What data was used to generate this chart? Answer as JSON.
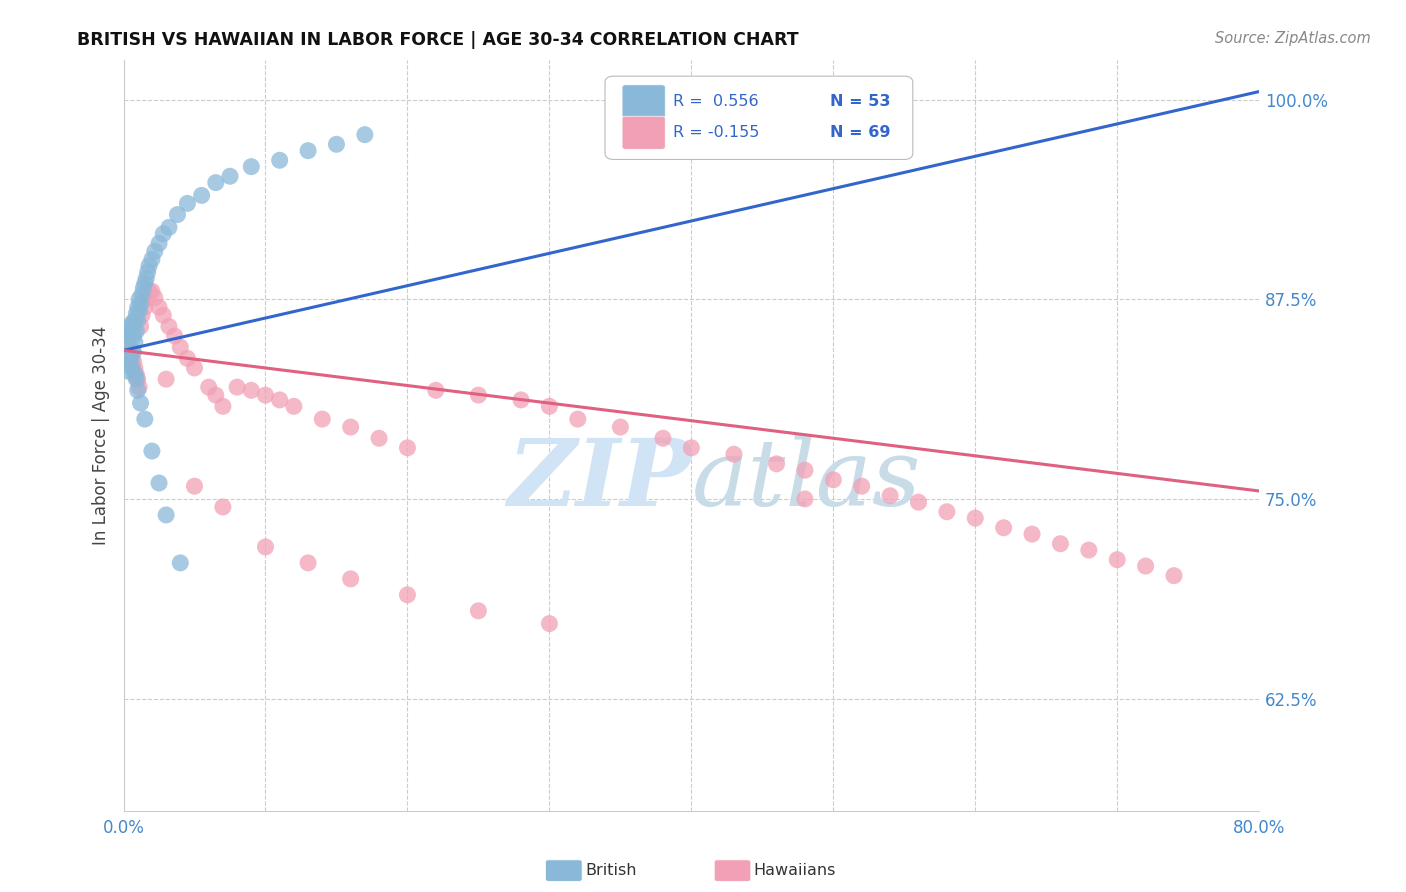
{
  "title": "BRITISH VS HAWAIIAN IN LABOR FORCE | AGE 30-34 CORRELATION CHART",
  "source_text": "Source: ZipAtlas.com",
  "ylabel": "In Labor Force | Age 30-34",
  "xlim": [
    0.0,
    0.8
  ],
  "ylim": [
    0.555,
    1.025
  ],
  "ytick_positions": [
    0.625,
    0.75,
    0.875,
    1.0
  ],
  "ytick_labels": [
    "62.5%",
    "75.0%",
    "87.5%",
    "100.0%"
  ],
  "british_color": "#8ab8d8",
  "hawaiian_color": "#f2a0b5",
  "british_line_color": "#3366cc",
  "hawaiian_line_color": "#e06080",
  "legend_R_british": "R =  0.556",
  "legend_N_british": "N = 53",
  "legend_R_hawaiian": "R = -0.155",
  "legend_N_hawaiian": "N = 69",
  "watermark_color": "#d0e4f5",
  "british_x": [
    0.002,
    0.003,
    0.004,
    0.005,
    0.005,
    0.006,
    0.006,
    0.007,
    0.007,
    0.008,
    0.008,
    0.009,
    0.009,
    0.01,
    0.01,
    0.011,
    0.011,
    0.012,
    0.013,
    0.014,
    0.015,
    0.016,
    0.017,
    0.018,
    0.02,
    0.022,
    0.025,
    0.028,
    0.032,
    0.038,
    0.045,
    0.055,
    0.065,
    0.075,
    0.09,
    0.11,
    0.13,
    0.15,
    0.17,
    0.003,
    0.004,
    0.005,
    0.006,
    0.007,
    0.008,
    0.009,
    0.01,
    0.012,
    0.015,
    0.02,
    0.025,
    0.03,
    0.04
  ],
  "british_y": [
    0.84,
    0.848,
    0.852,
    0.855,
    0.858,
    0.843,
    0.86,
    0.852,
    0.858,
    0.848,
    0.862,
    0.855,
    0.866,
    0.862,
    0.87,
    0.868,
    0.875,
    0.872,
    0.878,
    0.882,
    0.885,
    0.888,
    0.892,
    0.896,
    0.9,
    0.905,
    0.91,
    0.916,
    0.92,
    0.928,
    0.935,
    0.94,
    0.948,
    0.952,
    0.958,
    0.962,
    0.968,
    0.972,
    0.978,
    0.83,
    0.835,
    0.838,
    0.832,
    0.842,
    0.828,
    0.825,
    0.818,
    0.81,
    0.8,
    0.78,
    0.76,
    0.74,
    0.71
  ],
  "hawaiian_x": [
    0.003,
    0.004,
    0.005,
    0.006,
    0.007,
    0.008,
    0.009,
    0.01,
    0.011,
    0.012,
    0.013,
    0.015,
    0.016,
    0.018,
    0.02,
    0.022,
    0.025,
    0.028,
    0.032,
    0.036,
    0.04,
    0.045,
    0.05,
    0.06,
    0.065,
    0.07,
    0.08,
    0.09,
    0.1,
    0.11,
    0.12,
    0.14,
    0.16,
    0.18,
    0.2,
    0.22,
    0.25,
    0.28,
    0.3,
    0.32,
    0.35,
    0.38,
    0.4,
    0.43,
    0.46,
    0.48,
    0.5,
    0.52,
    0.54,
    0.56,
    0.58,
    0.6,
    0.62,
    0.64,
    0.66,
    0.68,
    0.7,
    0.72,
    0.74,
    0.03,
    0.05,
    0.07,
    0.1,
    0.13,
    0.16,
    0.2,
    0.25,
    0.3,
    0.48
  ],
  "hawaiian_y": [
    0.84,
    0.845,
    0.842,
    0.838,
    0.836,
    0.832,
    0.828,
    0.825,
    0.82,
    0.858,
    0.865,
    0.87,
    0.875,
    0.88,
    0.88,
    0.876,
    0.87,
    0.865,
    0.858,
    0.852,
    0.845,
    0.838,
    0.832,
    0.82,
    0.815,
    0.808,
    0.82,
    0.818,
    0.815,
    0.812,
    0.808,
    0.8,
    0.795,
    0.788,
    0.782,
    0.818,
    0.815,
    0.812,
    0.808,
    0.8,
    0.795,
    0.788,
    0.782,
    0.778,
    0.772,
    0.768,
    0.762,
    0.758,
    0.752,
    0.748,
    0.742,
    0.738,
    0.732,
    0.728,
    0.722,
    0.718,
    0.712,
    0.708,
    0.702,
    0.825,
    0.758,
    0.745,
    0.72,
    0.71,
    0.7,
    0.69,
    0.68,
    0.672,
    0.75
  ]
}
